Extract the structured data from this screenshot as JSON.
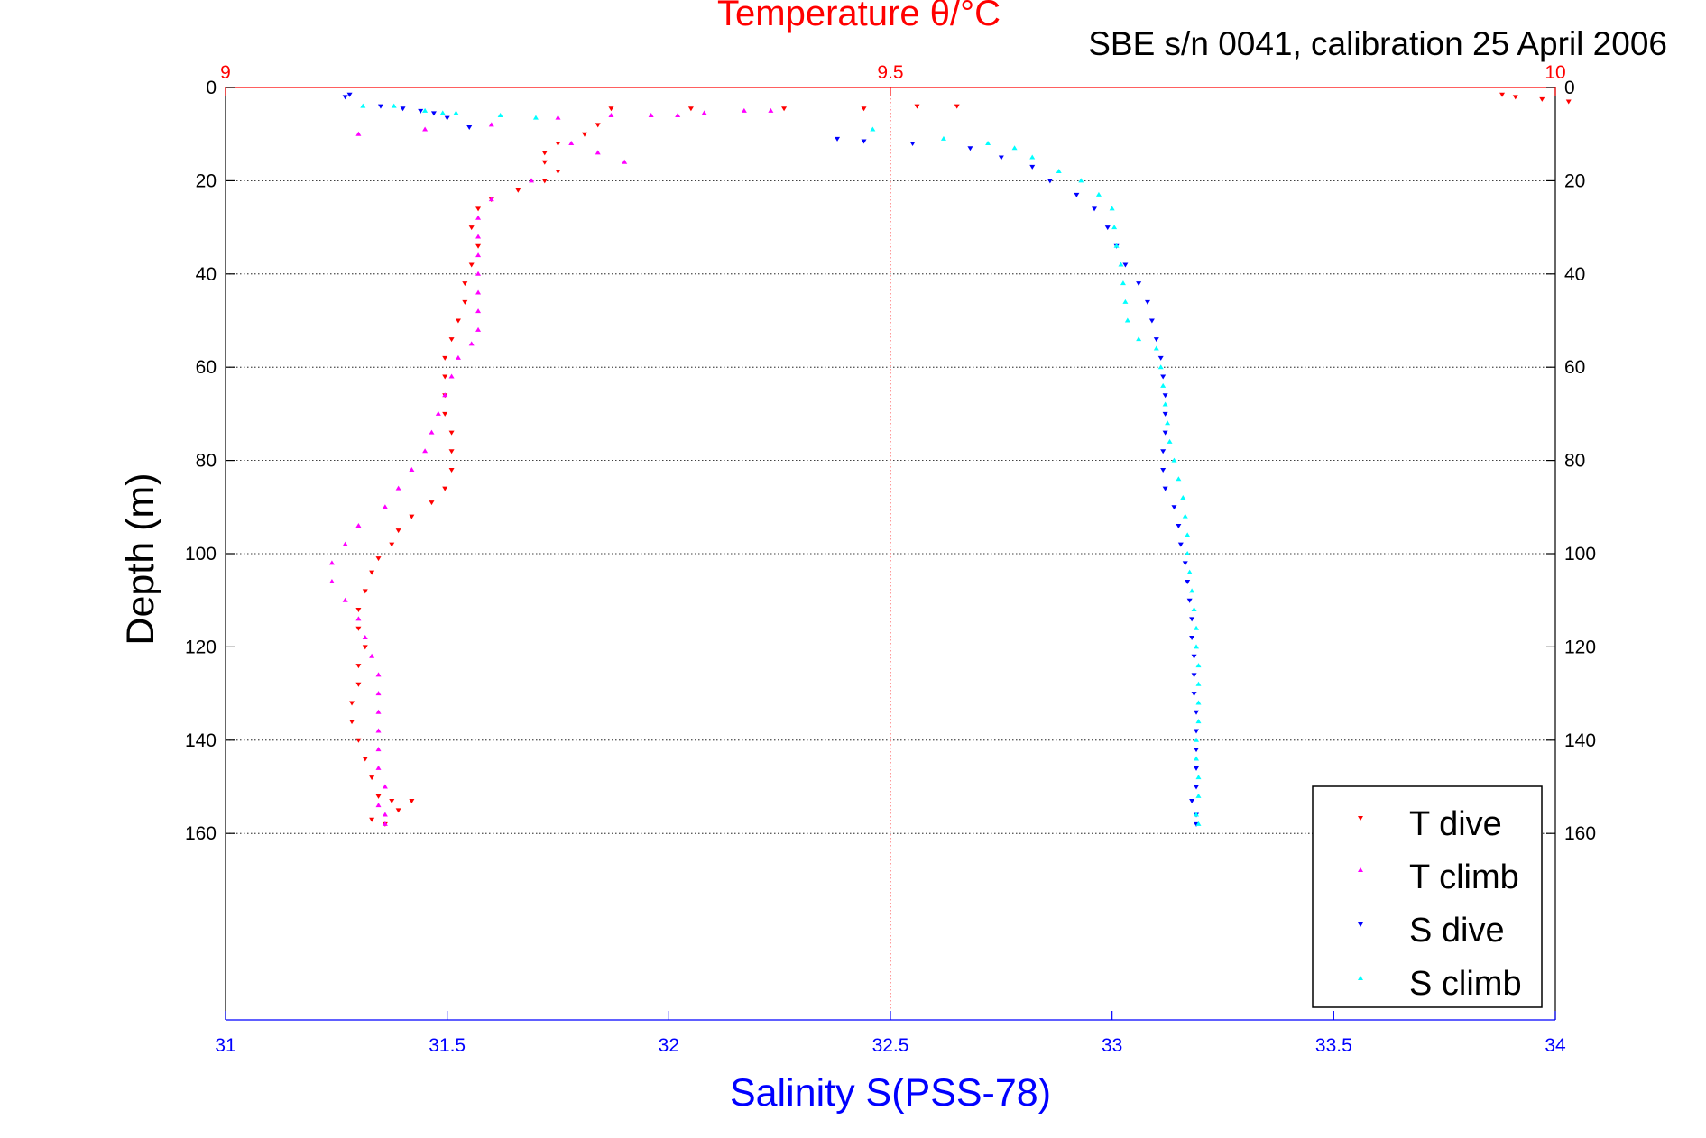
{
  "chart_data": {
    "type": "scatter",
    "title": "Temperature θ/°C",
    "subtitle": "SBE s/n 0041, calibration 25 April 2006",
    "xlabel": "Salinity S(PSS-78)",
    "ylabel": "Depth (m)",
    "xlim": [
      31,
      34
    ],
    "x2lim": [
      9,
      10
    ],
    "ylim": [
      0,
      200
    ],
    "y_reversed": true,
    "xticks": [
      "31",
      "31.5",
      "32",
      "32.5",
      "33",
      "33.5",
      "34"
    ],
    "x2ticks": [
      "9",
      "9.5",
      "10"
    ],
    "yticks": [
      "0",
      "20",
      "40",
      "60",
      "80",
      "100",
      "120",
      "140",
      "160"
    ],
    "grid": true,
    "legend_position": "bottom-right",
    "colors": {
      "temperature_axis": "#ff0000",
      "salinity_axis": "#0000ff",
      "t_dive": "#ff0000",
      "t_climb": "#ff00ff",
      "s_dive": "#0000ff",
      "s_climb": "#00ffff"
    },
    "series": [
      {
        "name": "T dive",
        "axis": "temperature",
        "marker": "triangle-down",
        "color": "#ff0000",
        "points": [
          [
            9.96,
            1.5
          ],
          [
            9.97,
            2
          ],
          [
            9.99,
            2.5
          ],
          [
            10.01,
            3
          ],
          [
            9.29,
            4.5
          ],
          [
            9.35,
            4.5
          ],
          [
            9.42,
            4.5
          ],
          [
            9.48,
            4.5
          ],
          [
            9.52,
            4
          ],
          [
            9.55,
            4
          ],
          [
            9.28,
            8
          ],
          [
            9.27,
            10
          ],
          [
            9.25,
            12
          ],
          [
            9.24,
            14
          ],
          [
            9.24,
            16
          ],
          [
            9.25,
            18
          ],
          [
            9.24,
            20
          ],
          [
            9.22,
            22
          ],
          [
            9.2,
            24
          ],
          [
            9.19,
            26
          ],
          [
            9.185,
            30
          ],
          [
            9.19,
            34
          ],
          [
            9.185,
            38
          ],
          [
            9.18,
            42
          ],
          [
            9.18,
            46
          ],
          [
            9.175,
            50
          ],
          [
            9.17,
            54
          ],
          [
            9.165,
            58
          ],
          [
            9.165,
            62
          ],
          [
            9.165,
            66
          ],
          [
            9.165,
            70
          ],
          [
            9.17,
            74
          ],
          [
            9.17,
            78
          ],
          [
            9.17,
            82
          ],
          [
            9.165,
            86
          ],
          [
            9.155,
            89
          ],
          [
            9.14,
            92
          ],
          [
            9.13,
            95
          ],
          [
            9.125,
            98
          ],
          [
            9.115,
            101
          ],
          [
            9.11,
            104
          ],
          [
            9.105,
            108
          ],
          [
            9.1,
            112
          ],
          [
            9.1,
            116
          ],
          [
            9.105,
            120
          ],
          [
            9.1,
            124
          ],
          [
            9.1,
            128
          ],
          [
            9.095,
            132
          ],
          [
            9.095,
            136
          ],
          [
            9.1,
            140
          ],
          [
            9.105,
            144
          ],
          [
            9.11,
            148
          ],
          [
            9.115,
            152
          ],
          [
            9.125,
            153
          ],
          [
            9.14,
            153
          ],
          [
            9.13,
            155
          ],
          [
            9.11,
            157
          ],
          [
            9.12,
            158
          ]
        ]
      },
      {
        "name": "T climb",
        "axis": "temperature",
        "marker": "triangle-up",
        "color": "#ff00ff",
        "points": [
          [
            9.41,
            5
          ],
          [
            9.39,
            5
          ],
          [
            9.36,
            5.5
          ],
          [
            9.34,
            6
          ],
          [
            9.32,
            6
          ],
          [
            9.29,
            6
          ],
          [
            9.25,
            6.5
          ],
          [
            9.2,
            8
          ],
          [
            9.15,
            9
          ],
          [
            9.1,
            10
          ],
          [
            9.26,
            12
          ],
          [
            9.28,
            14
          ],
          [
            9.3,
            16
          ],
          [
            9.23,
            20
          ],
          [
            9.2,
            24
          ],
          [
            9.19,
            28
          ],
          [
            9.19,
            32
          ],
          [
            9.19,
            36
          ],
          [
            9.19,
            40
          ],
          [
            9.19,
            44
          ],
          [
            9.19,
            48
          ],
          [
            9.19,
            52
          ],
          [
            9.185,
            55
          ],
          [
            9.175,
            58
          ],
          [
            9.17,
            62
          ],
          [
            9.165,
            66
          ],
          [
            9.16,
            70
          ],
          [
            9.155,
            74
          ],
          [
            9.15,
            78
          ],
          [
            9.14,
            82
          ],
          [
            9.13,
            86
          ],
          [
            9.12,
            90
          ],
          [
            9.1,
            94
          ],
          [
            9.09,
            98
          ],
          [
            9.08,
            102
          ],
          [
            9.08,
            106
          ],
          [
            9.09,
            110
          ],
          [
            9.1,
            114
          ],
          [
            9.105,
            118
          ],
          [
            9.11,
            122
          ],
          [
            9.115,
            126
          ],
          [
            9.115,
            130
          ],
          [
            9.115,
            134
          ],
          [
            9.115,
            138
          ],
          [
            9.115,
            142
          ],
          [
            9.115,
            146
          ],
          [
            9.12,
            150
          ],
          [
            9.115,
            154
          ],
          [
            9.12,
            156
          ],
          [
            9.12,
            158
          ]
        ]
      },
      {
        "name": "S dive",
        "axis": "salinity",
        "marker": "triangle-down",
        "color": "#0000ff",
        "points": [
          [
            31.27,
            2
          ],
          [
            31.28,
            1.5
          ],
          [
            31.35,
            4
          ],
          [
            31.4,
            4.5
          ],
          [
            31.44,
            5
          ],
          [
            31.47,
            5.5
          ],
          [
            31.5,
            6.5
          ],
          [
            31.55,
            8.5
          ],
          [
            32.38,
            11
          ],
          [
            32.44,
            11.5
          ],
          [
            32.55,
            12
          ],
          [
            32.68,
            13
          ],
          [
            32.75,
            15
          ],
          [
            32.82,
            17
          ],
          [
            32.86,
            20
          ],
          [
            32.92,
            23
          ],
          [
            32.96,
            26
          ],
          [
            32.99,
            30
          ],
          [
            33.01,
            34
          ],
          [
            33.03,
            38
          ],
          [
            33.06,
            42
          ],
          [
            33.08,
            46
          ],
          [
            33.09,
            50
          ],
          [
            33.1,
            54
          ],
          [
            33.11,
            58
          ],
          [
            33.115,
            62
          ],
          [
            33.12,
            66
          ],
          [
            33.12,
            70
          ],
          [
            33.12,
            74
          ],
          [
            33.115,
            78
          ],
          [
            33.115,
            82
          ],
          [
            33.12,
            86
          ],
          [
            33.14,
            90
          ],
          [
            33.15,
            94
          ],
          [
            33.155,
            98
          ],
          [
            33.165,
            102
          ],
          [
            33.17,
            106
          ],
          [
            33.175,
            110
          ],
          [
            33.18,
            114
          ],
          [
            33.18,
            118
          ],
          [
            33.185,
            122
          ],
          [
            33.185,
            126
          ],
          [
            33.185,
            130
          ],
          [
            33.19,
            134
          ],
          [
            33.19,
            138
          ],
          [
            33.19,
            142
          ],
          [
            33.19,
            146
          ],
          [
            33.19,
            150
          ],
          [
            33.18,
            153
          ],
          [
            33.19,
            156
          ],
          [
            33.19,
            158
          ]
        ]
      },
      {
        "name": "S climb",
        "axis": "salinity",
        "marker": "triangle-up",
        "color": "#00ffff",
        "points": [
          [
            31.31,
            4
          ],
          [
            31.38,
            4
          ],
          [
            31.45,
            5
          ],
          [
            31.49,
            5.5
          ],
          [
            31.52,
            5.5
          ],
          [
            31.62,
            6
          ],
          [
            31.7,
            6.5
          ],
          [
            32.46,
            9
          ],
          [
            32.62,
            11
          ],
          [
            32.72,
            12
          ],
          [
            32.78,
            13
          ],
          [
            32.82,
            15
          ],
          [
            32.88,
            18
          ],
          [
            32.93,
            20
          ],
          [
            32.97,
            23
          ],
          [
            33.0,
            26
          ],
          [
            33.005,
            30
          ],
          [
            33.01,
            34
          ],
          [
            33.02,
            38
          ],
          [
            33.025,
            42
          ],
          [
            33.03,
            46
          ],
          [
            33.035,
            50
          ],
          [
            33.06,
            54
          ],
          [
            33.1,
            56
          ],
          [
            33.11,
            60
          ],
          [
            33.115,
            64
          ],
          [
            33.12,
            68
          ],
          [
            33.125,
            72
          ],
          [
            33.13,
            76
          ],
          [
            33.14,
            80
          ],
          [
            33.15,
            84
          ],
          [
            33.16,
            88
          ],
          [
            33.165,
            92
          ],
          [
            33.17,
            96
          ],
          [
            33.17,
            100
          ],
          [
            33.175,
            104
          ],
          [
            33.18,
            108
          ],
          [
            33.185,
            112
          ],
          [
            33.19,
            116
          ],
          [
            33.19,
            120
          ],
          [
            33.195,
            124
          ],
          [
            33.195,
            128
          ],
          [
            33.195,
            132
          ],
          [
            33.195,
            136
          ],
          [
            33.19,
            140
          ],
          [
            33.19,
            144
          ],
          [
            33.195,
            148
          ],
          [
            33.195,
            152
          ],
          [
            33.19,
            156
          ],
          [
            33.195,
            158
          ]
        ]
      }
    ]
  }
}
